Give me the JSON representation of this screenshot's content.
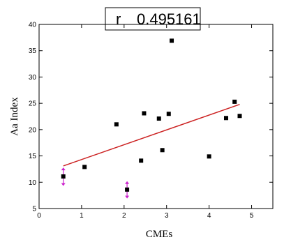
{
  "chart_data": {
    "type": "scatter",
    "title": "",
    "annotation": {
      "r_label": "r",
      "r_value": "0.495161"
    },
    "xlabel": "CMEs",
    "ylabel": "Aa Index",
    "xlim": [
      0,
      5.5
    ],
    "ylim": [
      5,
      40
    ],
    "x_ticks": [
      0,
      1,
      2,
      3,
      4,
      5
    ],
    "y_ticks": [
      5,
      10,
      15,
      20,
      25,
      30,
      35,
      40
    ],
    "grid": false,
    "series": [
      {
        "marker": "square",
        "color": "#000000",
        "points": [
          {
            "x": 0.57,
            "y": 11.1
          },
          {
            "x": 1.07,
            "y": 12.9
          },
          {
            "x": 1.82,
            "y": 21.0
          },
          {
            "x": 2.07,
            "y": 8.6
          },
          {
            "x": 2.4,
            "y": 14.1
          },
          {
            "x": 2.47,
            "y": 23.1
          },
          {
            "x": 2.82,
            "y": 22.1
          },
          {
            "x": 2.9,
            "y": 16.1
          },
          {
            "x": 3.05,
            "y": 23.0
          },
          {
            "x": 3.12,
            "y": 36.9
          },
          {
            "x": 4.0,
            "y": 14.9
          },
          {
            "x": 4.4,
            "y": 22.2
          },
          {
            "x": 4.6,
            "y": 25.3
          },
          {
            "x": 4.72,
            "y": 22.6
          }
        ]
      }
    ],
    "fit_line": {
      "color": "#cc2222",
      "x": [
        0.57,
        4.72
      ],
      "y": [
        13.1,
        24.8
      ]
    },
    "error_markers": {
      "color": "#cc22cc",
      "points": [
        {
          "x": 0.57,
          "y": 11.1,
          "low": 9.3,
          "high": 12.8
        },
        {
          "x": 2.07,
          "y": 8.6,
          "low": 6.9,
          "high": 10.2
        }
      ]
    }
  }
}
